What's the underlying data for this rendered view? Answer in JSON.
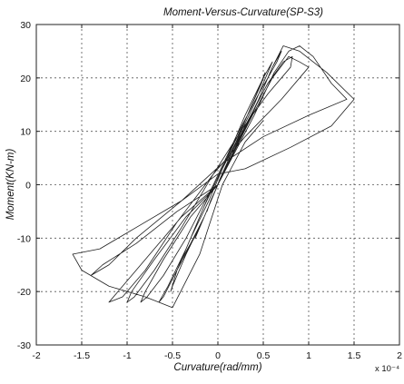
{
  "chart_data": {
    "type": "line",
    "title": "Moment-Versus-Curvature(SP-S3)",
    "xlabel": "Curvature(rad/mm)",
    "ylabel": "Moment(KN-m)",
    "x_multiplier_label": "x 10⁻⁴",
    "xlim": [
      -2,
      2
    ],
    "ylim": [
      -30,
      30
    ],
    "x_ticks": [
      -2,
      -1.5,
      -1,
      -0.5,
      0,
      0.5,
      1,
      1.5,
      2
    ],
    "y_ticks": [
      -30,
      -20,
      -10,
      0,
      10,
      20,
      30
    ],
    "x_tick_labels": [
      "-2",
      "-1.5",
      "-1",
      "-0.5",
      "0",
      "0.5",
      "1",
      "1.5",
      "2"
    ],
    "y_tick_labels": [
      "-30",
      "-20",
      "-10",
      "0",
      "10",
      "20",
      "30"
    ],
    "grid": true,
    "line_color": "#1e1e1e",
    "series": [
      {
        "x": [
          0,
          0.06,
          0.12,
          0.15,
          0.1,
          0.02,
          -0.05,
          -0.1,
          -0.12,
          -0.08,
          0,
          0.1,
          0.2,
          0.25,
          0.2,
          0.1,
          0,
          -0.1,
          -0.2,
          -0.25,
          -0.2,
          -0.1,
          0,
          0.15,
          0.3,
          0.4,
          0.35,
          0.2,
          0.05,
          -0.1,
          -0.25,
          -0.35,
          -0.4,
          -0.3,
          -0.15,
          0,
          0.2,
          0.35,
          0.48,
          0.52,
          0.45,
          0.3,
          0.1,
          -0.1,
          -0.3,
          -0.45,
          -0.52,
          -0.5,
          -0.35,
          -0.15,
          0,
          0.2,
          0.4,
          0.55,
          0.6,
          0.5,
          0.3,
          0.1,
          -0.15,
          -0.35,
          -0.55,
          -0.65,
          -0.6,
          -0.45,
          -0.2,
          0,
          0.25,
          0.45,
          0.6,
          0.7,
          0.65,
          0.45,
          0.2,
          -0.05,
          -0.35,
          -0.6,
          -0.78,
          -0.85,
          -0.8,
          -0.6,
          -0.3,
          0,
          0.3,
          0.55,
          0.72,
          0.82,
          0.8,
          0.55,
          0.25,
          -0.05,
          -0.4,
          -0.7,
          -0.92,
          -1.0,
          -0.95,
          -0.7,
          -0.35,
          0,
          0.35,
          0.6,
          0.78,
          0.9,
          1.0,
          0.7,
          0.3,
          -0.05,
          -0.45,
          -0.8,
          -1.05,
          -1.2,
          -1.1,
          -0.8,
          -0.4,
          0,
          0.4,
          0.62,
          0.78,
          0.9,
          1.05,
          1.25,
          1.42,
          1.0,
          0.5,
          0.05,
          -0.4,
          -0.9,
          -1.2,
          -1.4,
          -1.27,
          -0.9,
          -0.45,
          0,
          0.4,
          0.6,
          0.72,
          0.9,
          1.2,
          1.5,
          1.25,
          0.8,
          0.3,
          0,
          -0.4,
          -0.9,
          -1.3,
          -1.6,
          -1.5,
          -1.2,
          -0.8,
          -0.5,
          -0.2,
          0.05,
          0.3,
          0.5
        ],
        "y": [
          0,
          2,
          5,
          6,
          4,
          1,
          -2,
          -4,
          -5,
          -3,
          0,
          4,
          8,
          10,
          8,
          4,
          0,
          -4,
          -8,
          -10,
          -8,
          -4,
          0,
          6,
          11,
          14,
          12,
          8,
          3,
          -2,
          -8,
          -12,
          -14,
          -11,
          -6,
          0,
          8,
          14,
          19,
          21,
          18,
          12,
          5,
          -3,
          -10,
          -16,
          -20,
          -19,
          -13,
          -6,
          0,
          8,
          15,
          21,
          23,
          20,
          13,
          5,
          -4,
          -12,
          -19,
          -22,
          -21,
          -16,
          -8,
          0,
          9,
          16,
          22,
          25,
          23,
          17,
          9,
          0,
          -10,
          -17,
          -21,
          -22,
          -20,
          -14,
          -6,
          0,
          11,
          19,
          23,
          24,
          22,
          17,
          10,
          2,
          -8,
          -16,
          -21,
          -22,
          -20,
          -14,
          -6,
          0,
          12,
          20,
          24,
          23,
          22,
          16,
          9,
          2,
          -7,
          -16,
          -21,
          -22,
          -20,
          -14,
          -6,
          0,
          13,
          21,
          25,
          26,
          24,
          19,
          16,
          13,
          9,
          4,
          -3,
          -10,
          -15,
          -17,
          -15,
          -11,
          -5,
          0,
          14,
          22,
          26,
          25,
          21,
          16,
          11,
          7,
          3,
          2,
          -3,
          -8,
          -12,
          -13,
          -16,
          -19,
          -21,
          -23,
          -13,
          0,
          8,
          12
        ]
      }
    ]
  }
}
